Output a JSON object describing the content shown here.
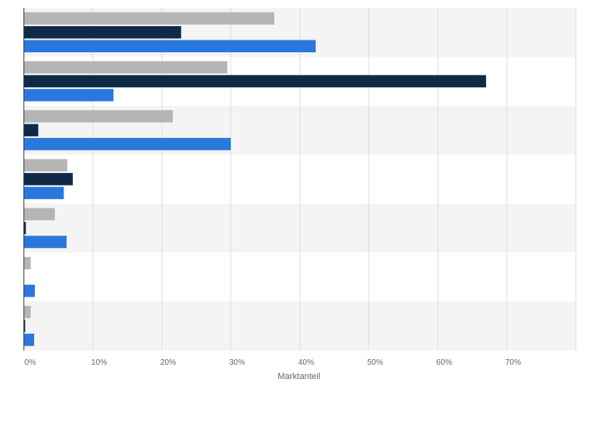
{
  "chart_data": {
    "type": "bar",
    "orientation": "horizontal",
    "xlabel": "Marktanteil",
    "xlim": [
      0,
      80
    ],
    "x_ticks": [
      0,
      10,
      20,
      30,
      40,
      50,
      60,
      70,
      80
    ],
    "x_tick_labels": [
      "0%",
      "10%",
      "20%",
      "30%",
      "40%",
      "50%",
      "60%",
      "70%",
      ""
    ],
    "grid": true,
    "category_count": 7,
    "series": [
      {
        "color": "#b5b5b5",
        "values": [
          36.3,
          29.5,
          21.6,
          6.3,
          4.5,
          1.0,
          1.0
        ]
      },
      {
        "color": "#0e2a47",
        "values": [
          22.8,
          67.0,
          2.1,
          7.1,
          0.3,
          0.0,
          0.2
        ]
      },
      {
        "color": "#2a78de",
        "values": [
          42.3,
          13.0,
          30.0,
          5.8,
          6.2,
          1.6,
          1.5
        ]
      }
    ],
    "colors": {
      "band_alt": "#f4f4f4",
      "grid": "#dddddd",
      "axis": "#333333",
      "tick_text": "#666666"
    }
  }
}
